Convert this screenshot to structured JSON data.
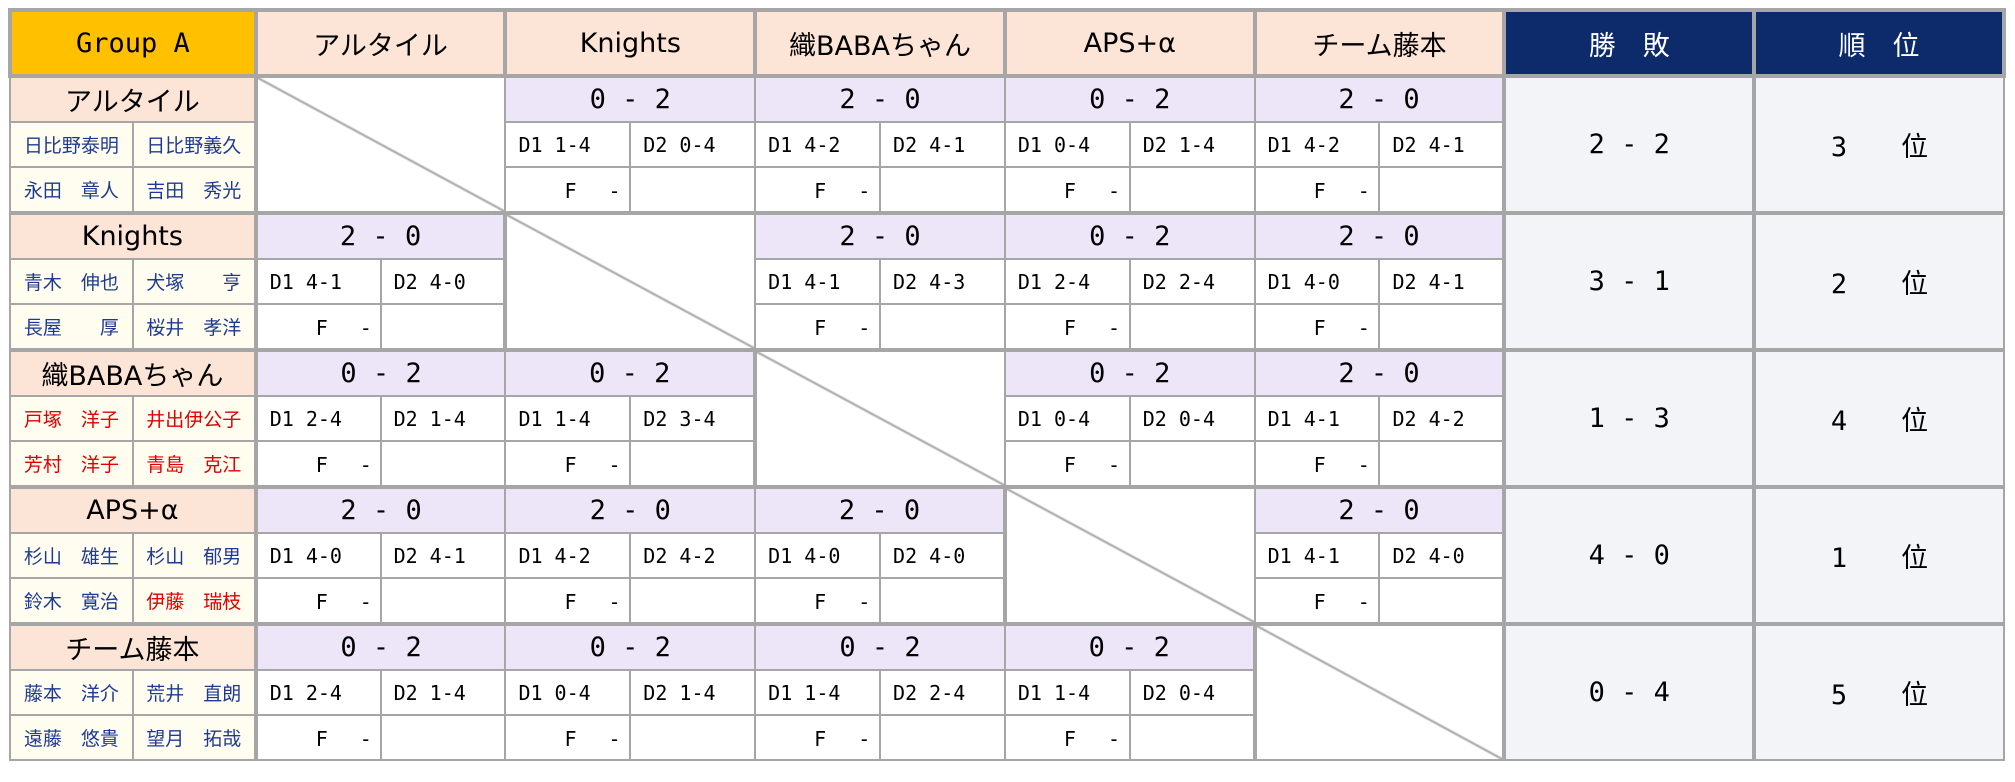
{
  "header": {
    "corner": "Group A",
    "teams": [
      "アルタイル",
      "Knights",
      "織BABAちゃん",
      "APS+α",
      "チーム藤本"
    ],
    "record": "勝　敗",
    "rank": "順　位"
  },
  "rows": [
    {
      "team": "アルタイル",
      "players": [
        {
          "name": "日比野泰明",
          "color": "#1f3a93"
        },
        {
          "name": "日比野義久",
          "color": "#1f3a93"
        },
        {
          "name": "永田　章人",
          "color": "#1f3a93"
        },
        {
          "name": "吉田　秀光",
          "color": "#1f3a93"
        }
      ],
      "matches": [
        null,
        {
          "score": "0 - 2",
          "d1": "D1 1-4",
          "d2": "D2 0-4",
          "f": "F　 -"
        },
        {
          "score": "2 - 0",
          "d1": "D1 4-2",
          "d2": "D2 4-1",
          "f": "F　 -"
        },
        {
          "score": "0 - 2",
          "d1": "D1 0-4",
          "d2": "D2 1-4",
          "f": "F　 -"
        },
        {
          "score": "2 - 0",
          "d1": "D1 4-2",
          "d2": "D2 4-1",
          "f": "F　 -"
        }
      ],
      "record": "2 - 2",
      "rank": "3　　位"
    },
    {
      "team": "Knights",
      "players": [
        {
          "name": "青木　伸也",
          "color": "#1f3a93"
        },
        {
          "name": "犬塚　　亨",
          "color": "#1f3a93"
        },
        {
          "name": "長屋　　厚",
          "color": "#1f3a93"
        },
        {
          "name": "桜井　孝洋",
          "color": "#1f3a93"
        }
      ],
      "matches": [
        {
          "score": "2 - 0",
          "d1": "D1 4-1",
          "d2": "D2 4-0",
          "f": "F　 -"
        },
        null,
        {
          "score": "2 - 0",
          "d1": "D1 4-1",
          "d2": "D2 4-3",
          "f": "F　 -"
        },
        {
          "score": "0 - 2",
          "d1": "D1 2-4",
          "d2": "D2 2-4",
          "f": "F　 -"
        },
        {
          "score": "2 - 0",
          "d1": "D1 4-0",
          "d2": "D2 4-1",
          "f": "F　 -"
        }
      ],
      "record": "3 - 1",
      "rank": "2　　位"
    },
    {
      "team": "織BABAちゃん",
      "players": [
        {
          "name": "戸塚　洋子",
          "color": "#e00000"
        },
        {
          "name": "井出伊公子",
          "color": "#e00000"
        },
        {
          "name": "芳村　洋子",
          "color": "#e00000"
        },
        {
          "name": "青島　克江",
          "color": "#e00000"
        }
      ],
      "matches": [
        {
          "score": "0 - 2",
          "d1": "D1 2-4",
          "d2": "D2 1-4",
          "f": "F　 -"
        },
        {
          "score": "0 - 2",
          "d1": "D1 1-4",
          "d2": "D2 3-4",
          "f": "F　 -"
        },
        null,
        {
          "score": "0 - 2",
          "d1": "D1 0-4",
          "d2": "D2 0-4",
          "f": "F　 -"
        },
        {
          "score": "2 - 0",
          "d1": "D1 4-1",
          "d2": "D2 4-2",
          "f": "F　 -"
        }
      ],
      "record": "1 - 3",
      "rank": "4　　位"
    },
    {
      "team": "APS+α",
      "players": [
        {
          "name": "杉山　雄生",
          "color": "#1f3a93"
        },
        {
          "name": "杉山　郁男",
          "color": "#1f3a93"
        },
        {
          "name": "鈴木　寛治",
          "color": "#1f3a93"
        },
        {
          "name": "伊藤　瑞枝",
          "color": "#e00000"
        }
      ],
      "matches": [
        {
          "score": "2 - 0",
          "d1": "D1 4-0",
          "d2": "D2 4-1",
          "f": "F　 -"
        },
        {
          "score": "2 - 0",
          "d1": "D1 4-2",
          "d2": "D2 4-2",
          "f": "F　 -"
        },
        {
          "score": "2 - 0",
          "d1": "D1 4-0",
          "d2": "D2 4-0",
          "f": "F　 -"
        },
        null,
        {
          "score": "2 - 0",
          "d1": "D1 4-1",
          "d2": "D2 4-0",
          "f": "F　 -"
        }
      ],
      "record": "4 - 0",
      "rank": "1　　位"
    },
    {
      "team": "チーム藤本",
      "players": [
        {
          "name": "藤本　洋介",
          "color": "#1f3a93"
        },
        {
          "name": "荒井　直朗",
          "color": "#1f3a93"
        },
        {
          "name": "遠藤　悠貴",
          "color": "#1f3a93"
        },
        {
          "name": "望月　拓哉",
          "color": "#1f3a93"
        }
      ],
      "matches": [
        {
          "score": "0 - 2",
          "d1": "D1 2-4",
          "d2": "D2 1-4",
          "f": "F　 -"
        },
        {
          "score": "0 - 2",
          "d1": "D1 0-4",
          "d2": "D2 1-4",
          "f": "F　 -"
        },
        {
          "score": "0 - 2",
          "d1": "D1 1-4",
          "d2": "D2 2-4",
          "f": "F　 -"
        },
        {
          "score": "0 - 2",
          "d1": "D1 1-4",
          "d2": "D2 0-4",
          "f": "F　 -"
        },
        null
      ],
      "record": "0 - 4",
      "rank": "5　　位"
    }
  ]
}
